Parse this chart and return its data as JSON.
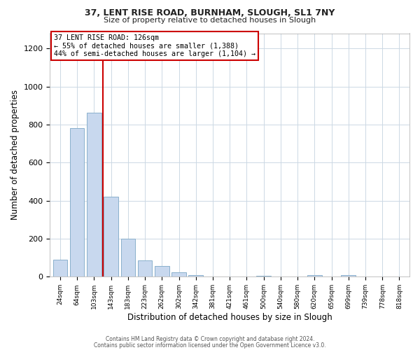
{
  "title1": "37, LENT RISE ROAD, BURNHAM, SLOUGH, SL1 7NY",
  "title2": "Size of property relative to detached houses in Slough",
  "xlabel": "Distribution of detached houses by size in Slough",
  "ylabel": "Number of detached properties",
  "bar_labels": [
    "24sqm",
    "64sqm",
    "103sqm",
    "143sqm",
    "183sqm",
    "223sqm",
    "262sqm",
    "302sqm",
    "342sqm",
    "381sqm",
    "421sqm",
    "461sqm",
    "500sqm",
    "540sqm",
    "580sqm",
    "620sqm",
    "659sqm",
    "699sqm",
    "739sqm",
    "778sqm",
    "818sqm"
  ],
  "bar_values": [
    90,
    780,
    862,
    420,
    200,
    85,
    55,
    22,
    8,
    2,
    0,
    0,
    5,
    0,
    0,
    8,
    0,
    8,
    0,
    0,
    0
  ],
  "bar_color": "#c8d8ee",
  "bar_edge_color": "#8ab0cc",
  "vline_x": 2.5,
  "vline_color": "#cc0000",
  "annotation_title": "37 LENT RISE ROAD: 126sqm",
  "annotation_line1": "← 55% of detached houses are smaller (1,388)",
  "annotation_line2": "44% of semi-detached houses are larger (1,104) →",
  "box_color": "#cc0000",
  "ylim": [
    0,
    1280
  ],
  "yticks": [
    0,
    200,
    400,
    600,
    800,
    1000,
    1200
  ],
  "footer1": "Contains HM Land Registry data © Crown copyright and database right 2024.",
  "footer2": "Contains public sector information licensed under the Open Government Licence v3.0.",
  "bg_color": "#ffffff",
  "grid_color": "#ccd8e4"
}
